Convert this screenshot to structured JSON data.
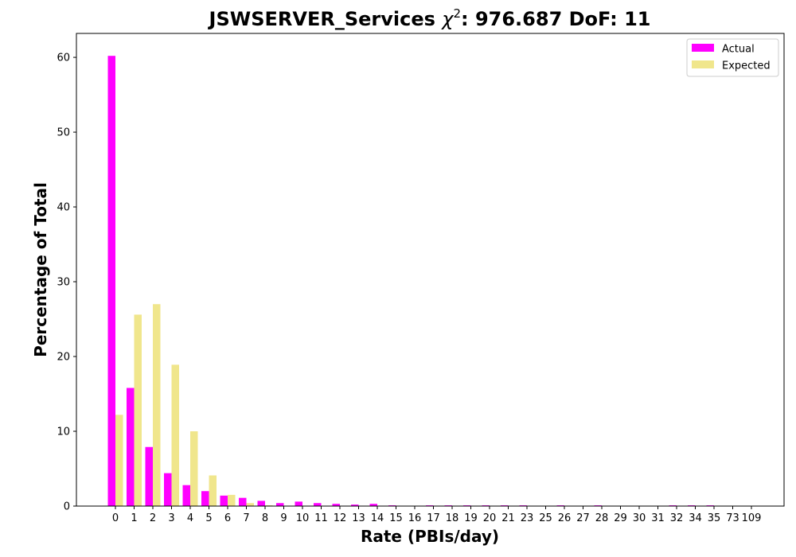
{
  "chart_data": {
    "type": "bar",
    "title_main": "JSWSERVER_Services ",
    "title_chi": "χ",
    "title_sup": "2",
    "title_rest": ": 976.687 DoF: 11",
    "xlabel": "Rate (PBIs/day)",
    "ylabel": "Percentage of Total",
    "ylim": [
      0,
      63.2
    ],
    "yticks": [
      0,
      10,
      20,
      30,
      40,
      50,
      60
    ],
    "legend_position": "top-right",
    "grid": false,
    "categories": [
      "0",
      "1",
      "2",
      "3",
      "4",
      "5",
      "6",
      "7",
      "8",
      "9",
      "10",
      "11",
      "12",
      "13",
      "14",
      "15",
      "16",
      "17",
      "18",
      "19",
      "20",
      "21",
      "23",
      "25",
      "26",
      "27",
      "28",
      "29",
      "30",
      "31",
      "32",
      "34",
      "35",
      "73",
      "109"
    ],
    "series": [
      {
        "name": "Actual",
        "color": "#ff00ff",
        "values": [
          60.2,
          15.8,
          7.9,
          4.4,
          2.8,
          2.0,
          1.4,
          1.1,
          0.7,
          0.4,
          0.6,
          0.4,
          0.3,
          0.2,
          0.3,
          0.1,
          0.05,
          0.1,
          0.1,
          0.1,
          0.1,
          0.1,
          0.1,
          0.05,
          0.1,
          0.05,
          0.1,
          0.05,
          0.05,
          0.05,
          0.1,
          0.1,
          0.1,
          0.05,
          0.05
        ]
      },
      {
        "name": "Expected",
        "color": "#f0e68c",
        "values": [
          12.2,
          25.6,
          27.0,
          18.9,
          10.0,
          4.1,
          1.5,
          0.4,
          0.1,
          0.02,
          0,
          0,
          0,
          0,
          0,
          0,
          0,
          0,
          0,
          0,
          0,
          0,
          0,
          0,
          0,
          0,
          0,
          0,
          0,
          0,
          0,
          0,
          0,
          0,
          0
        ]
      }
    ]
  }
}
